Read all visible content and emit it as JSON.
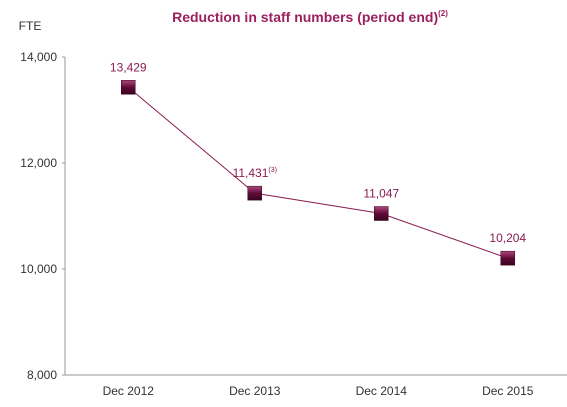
{
  "chart_data": {
    "type": "line",
    "title": "Reduction in staff numbers (period end)",
    "title_note": "(2)",
    "y_label": "FTE",
    "categories": [
      "Dec 2012",
      "Dec 2013",
      "Dec 2014",
      "Dec 2015"
    ],
    "values": [
      13429,
      11431,
      11047,
      10204
    ],
    "value_labels": [
      "13,429",
      "11,431",
      "11,047",
      "10,204"
    ],
    "annotations": [
      {
        "category": "Dec 2013",
        "text": "(3)"
      }
    ],
    "color": "#8a1c52",
    "marker_color": "#5e0b36",
    "ylim": [
      8000,
      14000
    ],
    "yticks": [
      {
        "value": 8000,
        "label": "8,000"
      },
      {
        "value": 10000,
        "label": "10,000"
      },
      {
        "value": 12000,
        "label": "12,000"
      },
      {
        "value": 14000,
        "label": "14,000"
      }
    ],
    "grid": false
  }
}
